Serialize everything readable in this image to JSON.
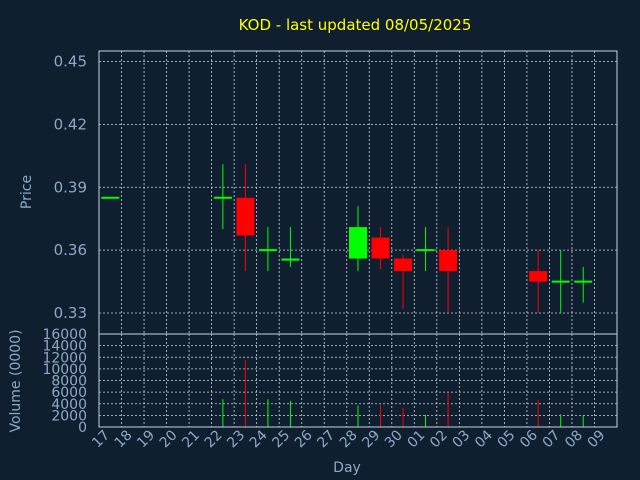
{
  "chart_data": {
    "title": "KOD - last updated 08/05/2025",
    "price_panel": {
      "type": "candlestick",
      "ylabel": "Price",
      "ylim": [
        0.32,
        0.455
      ],
      "yticks": [
        "0.45",
        "0.42",
        "0.39",
        "0.36",
        "0.33"
      ],
      "ytick_values": [
        0.45,
        0.42,
        0.39,
        0.36,
        0.33
      ],
      "up_color": "#00ff00",
      "down_color": "#ff0000"
    },
    "volume_panel": {
      "type": "bar",
      "ylabel": "Volume (0000)",
      "ylim": [
        0,
        16000
      ],
      "yticks": [
        "16000",
        "14000",
        "12000",
        "10000",
        "8000",
        "6000",
        "4000",
        "2000",
        "0"
      ],
      "ytick_values": [
        16000,
        14000,
        12000,
        10000,
        8000,
        6000,
        4000,
        2000,
        0
      ]
    },
    "xlabel": "Day",
    "categories": [
      "17",
      "18",
      "19",
      "20",
      "21",
      "22",
      "23",
      "24",
      "25",
      "26",
      "27",
      "28",
      "29",
      "30",
      "01",
      "02",
      "03",
      "04",
      "05",
      "06",
      "07",
      "08",
      "09"
    ],
    "candles": [
      {
        "x": "17",
        "open": 0.385,
        "high": 0.385,
        "low": 0.385,
        "close": 0.385,
        "volume": 0
      },
      {
        "x": "22",
        "open": 0.385,
        "high": 0.401,
        "low": 0.37,
        "close": 0.385,
        "volume": 4800
      },
      {
        "x": "23",
        "open": 0.385,
        "high": 0.401,
        "low": 0.35,
        "close": 0.367,
        "volume": 11500
      },
      {
        "x": "24",
        "open": 0.36,
        "high": 0.371,
        "low": 0.35,
        "close": 0.36,
        "volume": 4800
      },
      {
        "x": "25",
        "open": 0.355,
        "high": 0.371,
        "low": 0.352,
        "close": 0.356,
        "volume": 4500
      },
      {
        "x": "28",
        "open": 0.356,
        "high": 0.381,
        "low": 0.35,
        "close": 0.371,
        "volume": 3700
      },
      {
        "x": "29",
        "open": 0.366,
        "high": 0.371,
        "low": 0.351,
        "close": 0.356,
        "volume": 3800
      },
      {
        "x": "30",
        "open": 0.356,
        "high": 0.358,
        "low": 0.332,
        "close": 0.35,
        "volume": 3300
      },
      {
        "x": "01",
        "open": 0.36,
        "high": 0.371,
        "low": 0.35,
        "close": 0.36,
        "volume": 2100
      },
      {
        "x": "02",
        "open": 0.36,
        "high": 0.371,
        "low": 0.33,
        "close": 0.35,
        "volume": 6000
      },
      {
        "x": "06",
        "open": 0.35,
        "high": 0.36,
        "low": 0.33,
        "close": 0.345,
        "volume": 4700
      },
      {
        "x": "07",
        "open": 0.345,
        "high": 0.36,
        "low": 0.33,
        "close": 0.345,
        "volume": 2200
      },
      {
        "x": "08",
        "open": 0.345,
        "high": 0.352,
        "low": 0.335,
        "close": 0.345,
        "volume": 2000
      }
    ],
    "grid": true
  }
}
